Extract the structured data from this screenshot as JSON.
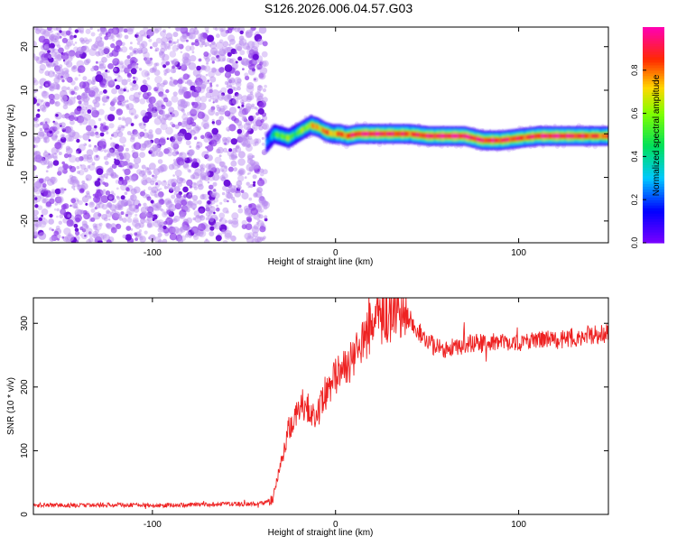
{
  "title": "S126.2026.006.04.57.G03",
  "colors": {
    "snr_line": "#ee2222",
    "scatter": "#8a2be2",
    "axis": "#000000",
    "background": "#ffffff"
  },
  "chart_data": [
    {
      "type": "heatmap",
      "name": "spectrogram",
      "title": "S126.2026.006.04.57.G03",
      "xlabel": "Height of straight line (km)",
      "ylabel": "Frequency (Hz)",
      "xlim": [
        -165,
        149
      ],
      "ylim": [
        -25,
        24.5
      ],
      "xticks": [
        -100,
        0,
        100
      ],
      "yticks": [
        -20,
        -10,
        0,
        10,
        20
      ],
      "noise_region_x": [
        -165,
        -38
      ],
      "ridge": {
        "x": [
          -38,
          -34,
          -30,
          -26,
          -22,
          -18,
          -14,
          -10,
          -6,
          -2,
          2,
          6,
          12,
          20,
          30,
          40,
          50,
          60,
          70,
          80,
          90,
          100,
          110,
          120,
          130,
          140,
          149
        ],
        "freq": [
          -2.0,
          0.0,
          -0.5,
          -1.0,
          0.0,
          1.0,
          2.0,
          1.5,
          0.5,
          0.0,
          0.0,
          -0.5,
          0.0,
          0.0,
          0.0,
          0.0,
          -0.5,
          -0.5,
          -0.5,
          -1.5,
          -1.5,
          -1.0,
          -0.5,
          -0.5,
          -0.5,
          -0.5,
          -0.5
        ],
        "amplitude": [
          0.25,
          0.4,
          0.6,
          0.55,
          0.5,
          0.6,
          0.7,
          0.75,
          0.8,
          0.75,
          0.8,
          0.85,
          0.9,
          0.95,
          0.9,
          0.85,
          0.9,
          0.95,
          0.95,
          0.9,
          0.9,
          0.85,
          0.9,
          0.95,
          0.9,
          0.85,
          0.8
        ]
      },
      "colorbar": {
        "label": "Normalized spectral amplitude",
        "range": [
          0,
          1
        ],
        "ticks": [
          0.0,
          0.2,
          0.4,
          0.6,
          0.8
        ],
        "tick_labels": [
          "0.0",
          "0.2",
          "0.4",
          "0.6",
          "0.8"
        ]
      }
    },
    {
      "type": "line",
      "name": "snr",
      "xlabel": "Height of straight line (km)",
      "ylabel": "SNR (10 * v/v)",
      "xlim": [
        -165,
        149
      ],
      "ylim": [
        0,
        340
      ],
      "xticks": [
        -100,
        0,
        100
      ],
      "yticks": [
        0,
        100,
        200,
        300
      ],
      "series": [
        {
          "name": "SNR",
          "x": [
            -165,
            -140,
            -120,
            -100,
            -80,
            -60,
            -40,
            -34,
            -30,
            -26,
            -22,
            -18,
            -14,
            -10,
            -6,
            -2,
            2,
            6,
            10,
            14,
            18,
            22,
            26,
            30,
            34,
            38,
            42,
            46,
            50,
            55,
            60,
            65,
            70,
            75,
            80,
            85,
            90,
            95,
            100,
            105,
            110,
            115,
            120,
            125,
            130,
            135,
            140,
            145,
            149
          ],
          "y": [
            15,
            14,
            15,
            14,
            15,
            16,
            17,
            25,
            80,
            130,
            150,
            175,
            165,
            150,
            190,
            205,
            225,
            235,
            245,
            265,
            290,
            300,
            305,
            310,
            320,
            315,
            300,
            285,
            270,
            262,
            260,
            262,
            266,
            270,
            268,
            270,
            272,
            270,
            268,
            272,
            274,
            276,
            274,
            276,
            278,
            280,
            282,
            284,
            285
          ]
        }
      ]
    }
  ]
}
